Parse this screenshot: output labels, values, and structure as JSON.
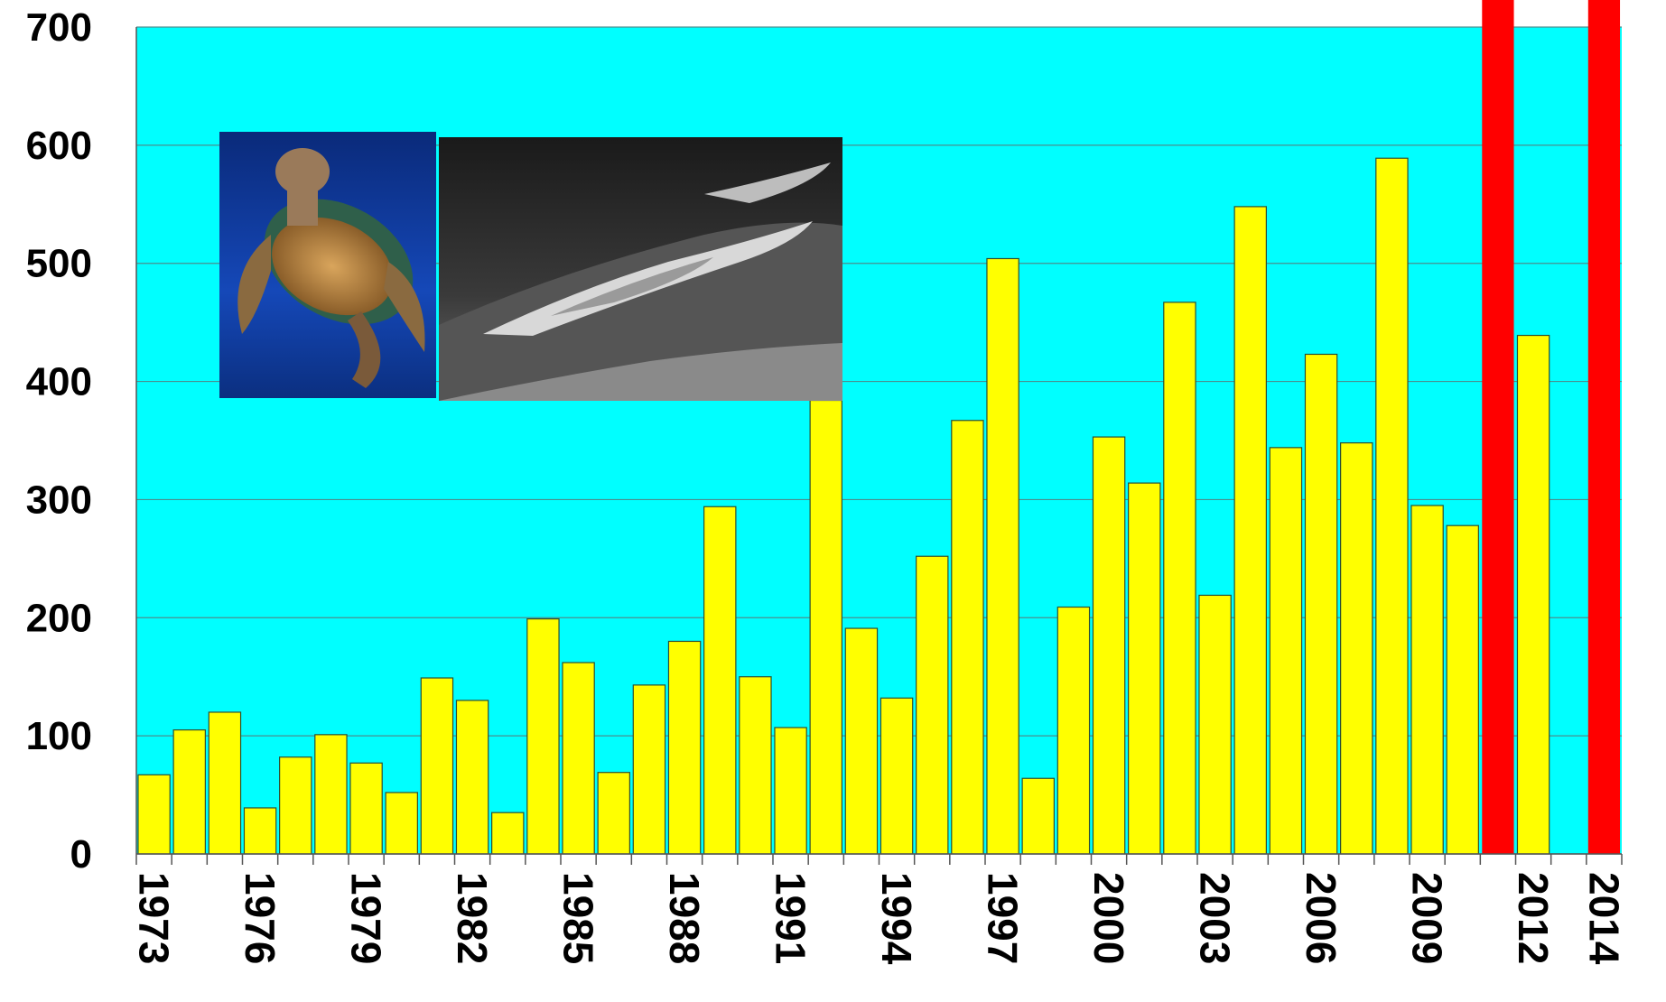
{
  "chart_data": {
    "type": "bar",
    "title": "",
    "xlabel": "",
    "ylabel": "",
    "ylim": [
      0,
      700
    ],
    "yticks": [
      0,
      100,
      200,
      300,
      400,
      500,
      600,
      700
    ],
    "categories": [
      "1973",
      "1974",
      "1975",
      "1976",
      "1977",
      "1978",
      "1979",
      "1980",
      "1981",
      "1982",
      "1983",
      "1984",
      "1985",
      "1986",
      "1987",
      "1988",
      "1989",
      "1990",
      "1991",
      "1992",
      "1993",
      "1994",
      "1995",
      "1996",
      "1997",
      "1998",
      "1999",
      "2000",
      "2001",
      "2002",
      "2003",
      "2004",
      "2005",
      "2006",
      "2007",
      "2008",
      "2009",
      "2010",
      "2011",
      "2012",
      "2013",
      "2014"
    ],
    "x_tick_labels": [
      "1973",
      "1976",
      "1979",
      "1982",
      "1985",
      "1988",
      "1991",
      "1994",
      "1997",
      "2000",
      "2003",
      "2006",
      "2009",
      "2012",
      "2014"
    ],
    "values": [
      67,
      105,
      120,
      39,
      82,
      101,
      77,
      52,
      149,
      130,
      35,
      199,
      162,
      69,
      143,
      180,
      294,
      150,
      107,
      384,
      191,
      132,
      252,
      367,
      504,
      64,
      209,
      353,
      314,
      467,
      219,
      548,
      344,
      423,
      348,
      589,
      295,
      278,
      0,
      439,
      0,
      0
    ],
    "highlighted_years": [
      "2011",
      "2014"
    ],
    "colors": {
      "plot_background": "#00ffff",
      "bar_fill": "#ffff00",
      "bar_stroke": "#2f4f2f",
      "highlight": "#ff0000",
      "gridline": "#4a8f8f"
    },
    "grid": true,
    "legend": "none"
  },
  "photos": [
    {
      "name": "sea-turtle-photo"
    },
    {
      "name": "island-aerial-photo"
    }
  ]
}
